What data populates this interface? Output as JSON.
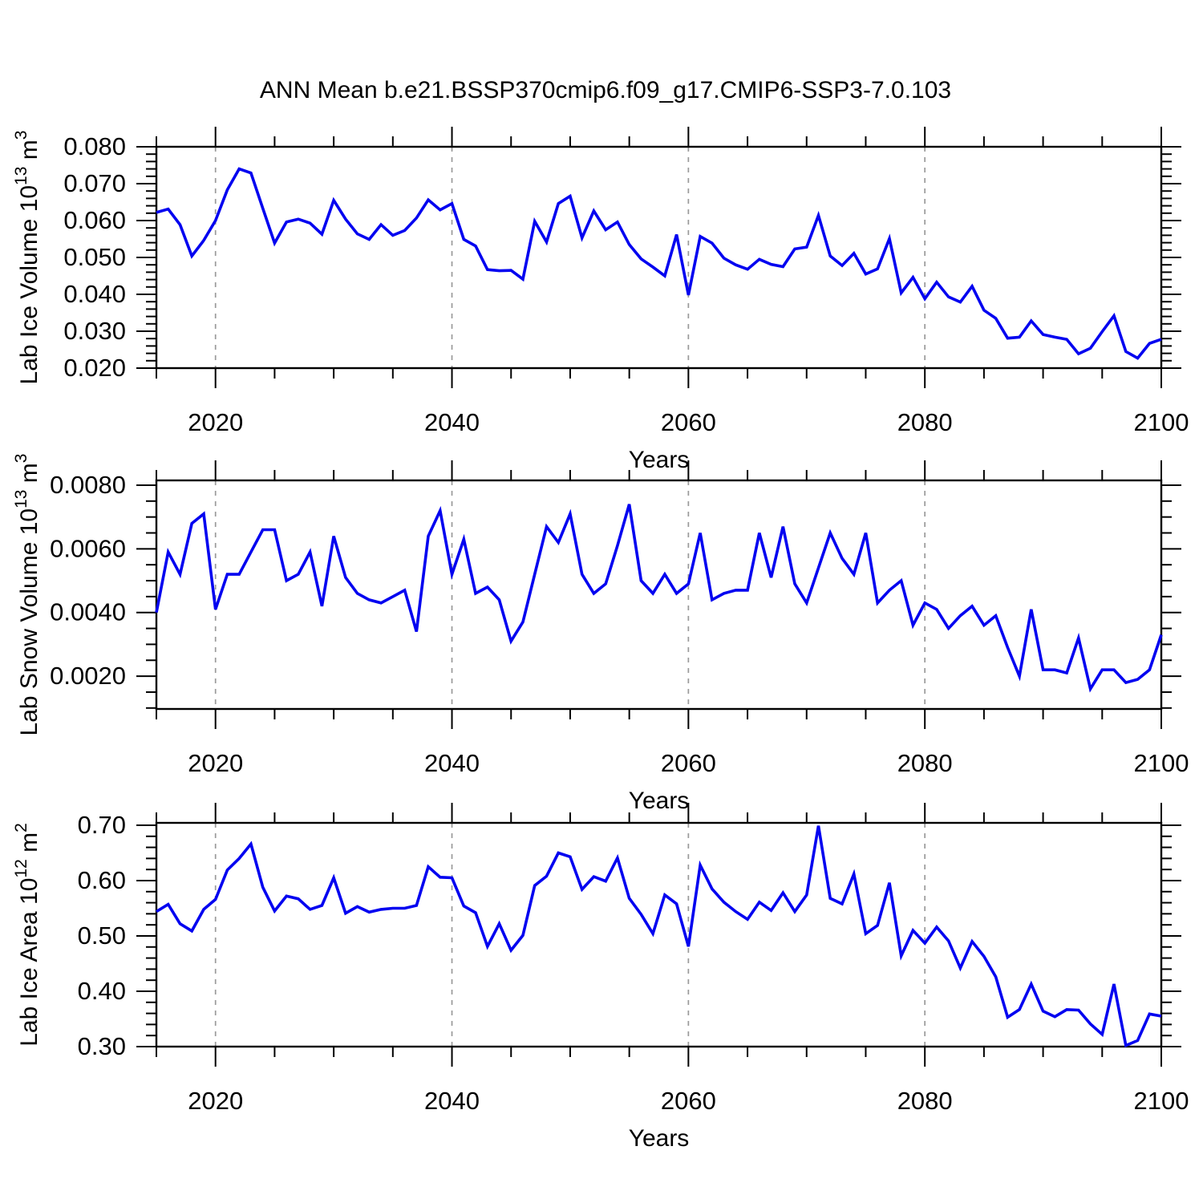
{
  "title": "ANN Mean b.e21.BSSP370cmip6.f09_g17.CMIP6-SSP3-7.0.103",
  "line_color": "#0202f0",
  "grid_color": "#9a9a9a",
  "axis_color": "#000000",
  "chart_data": {
    "type": "line",
    "x_years": [
      2015,
      2016,
      2017,
      2018,
      2019,
      2020,
      2021,
      2022,
      2023,
      2024,
      2025,
      2026,
      2027,
      2028,
      2029,
      2030,
      2031,
      2032,
      2033,
      2034,
      2035,
      2036,
      2037,
      2038,
      2039,
      2040,
      2041,
      2042,
      2043,
      2044,
      2045,
      2046,
      2047,
      2048,
      2049,
      2050,
      2051,
      2052,
      2053,
      2054,
      2055,
      2056,
      2057,
      2058,
      2059,
      2060,
      2061,
      2062,
      2063,
      2064,
      2065,
      2066,
      2067,
      2068,
      2069,
      2070,
      2071,
      2072,
      2073,
      2074,
      2075,
      2076,
      2077,
      2078,
      2079,
      2080,
      2081,
      2082,
      2083,
      2084,
      2085,
      2086,
      2087,
      2088,
      2089,
      2090,
      2091,
      2092,
      2093,
      2094,
      2095,
      2096,
      2097,
      2098,
      2099,
      2100
    ],
    "xlim": [
      2015,
      2100
    ],
    "xlabel": "Years",
    "xticks": {
      "labels": [
        "2020",
        "2040",
        "2060",
        "2080",
        "2100"
      ],
      "values": [
        2020,
        2040,
        2060,
        2080,
        2100
      ],
      "minor_step": 5
    },
    "gridlines_x": [
      2020,
      2040,
      2060,
      2080
    ],
    "legend": "none",
    "panels": [
      {
        "name": "lab-ice-volume",
        "ylabel": "Lab Ice Volume 10¹³ m³",
        "ylabel_parts": [
          {
            "t": "Lab Ice Volume 10"
          },
          {
            "t": "13",
            "sup": true
          },
          {
            "t": " m"
          },
          {
            "t": "3",
            "sup": true
          }
        ],
        "ylim": [
          0.02,
          0.08
        ],
        "yticks": {
          "labels": [
            "0.020",
            "0.030",
            "0.040",
            "0.050",
            "0.060",
            "0.070",
            "0.080"
          ],
          "values": [
            0.02,
            0.03,
            0.04,
            0.05,
            0.06,
            0.07,
            0.08
          ],
          "minor_step": 0.002
        },
        "values": [
          0.0622,
          0.0631,
          0.0589,
          0.0504,
          0.0546,
          0.06,
          0.0683,
          0.074,
          0.0729,
          0.0633,
          0.0539,
          0.0596,
          0.0604,
          0.0593,
          0.0563,
          0.0655,
          0.0604,
          0.0564,
          0.0549,
          0.0589,
          0.056,
          0.0573,
          0.0607,
          0.0656,
          0.0629,
          0.0646,
          0.0549,
          0.0531,
          0.0467,
          0.0464,
          0.0465,
          0.0441,
          0.0598,
          0.0542,
          0.0646,
          0.0666,
          0.0553,
          0.0626,
          0.0575,
          0.0596,
          0.0535,
          0.0496,
          0.0474,
          0.045,
          0.0562,
          0.0398,
          0.0557,
          0.0539,
          0.0498,
          0.048,
          0.0468,
          0.0495,
          0.0481,
          0.0475,
          0.0523,
          0.0528,
          0.0614,
          0.0504,
          0.0478,
          0.0511,
          0.0455,
          0.0469,
          0.0551,
          0.0404,
          0.0446,
          0.0388,
          0.0433,
          0.0393,
          0.0379,
          0.0422,
          0.0357,
          0.0335,
          0.0281,
          0.0284,
          0.0328,
          0.0291,
          0.0284,
          0.0278,
          0.0239,
          0.0254,
          0.0299,
          0.0342,
          0.0245,
          0.0227,
          0.0267,
          0.0278
        ]
      },
      {
        "name": "lab-snow-volume",
        "ylabel": "Lab Snow Volume 10¹³ m³",
        "ylabel_parts": [
          {
            "t": "Lab Snow Volume 10"
          },
          {
            "t": "13",
            "sup": true
          },
          {
            "t": " m"
          },
          {
            "t": "3",
            "sup": true
          }
        ],
        "ylim": [
          0.00097,
          0.00815
        ],
        "yticks": {
          "labels": [
            "0.0020",
            "0.0040",
            "0.0060",
            "0.0080"
          ],
          "values": [
            0.002,
            0.004,
            0.006,
            0.008
          ],
          "minor_step": 0.0005
        },
        "values": [
          0.004,
          0.0059,
          0.0052,
          0.0068,
          0.0071,
          0.0041,
          0.0052,
          0.0052,
          0.0059,
          0.0066,
          0.0066,
          0.005,
          0.0052,
          0.0059,
          0.0042,
          0.0064,
          0.0051,
          0.0046,
          0.0044,
          0.0043,
          0.0045,
          0.0047,
          0.0034,
          0.0064,
          0.0072,
          0.0052,
          0.0063,
          0.0046,
          0.0048,
          0.0044,
          0.0031,
          0.0037,
          0.0052,
          0.0067,
          0.0062,
          0.0071,
          0.0052,
          0.0046,
          0.0049,
          0.0061,
          0.0074,
          0.005,
          0.0046,
          0.0052,
          0.0046,
          0.0049,
          0.0065,
          0.0044,
          0.0046,
          0.0047,
          0.0047,
          0.0065,
          0.0051,
          0.0067,
          0.0049,
          0.0043,
          0.0054,
          0.0065,
          0.0057,
          0.0052,
          0.0065,
          0.0043,
          0.0047,
          0.005,
          0.0036,
          0.0043,
          0.0041,
          0.0035,
          0.0039,
          0.0042,
          0.0036,
          0.0039,
          0.0029,
          0.002,
          0.0041,
          0.0022,
          0.0022,
          0.0021,
          0.0032,
          0.0016,
          0.0022,
          0.0022,
          0.0018,
          0.0019,
          0.0022,
          0.0033
        ]
      },
      {
        "name": "lab-ice-area",
        "ylabel": "Lab Ice Area 10¹² m²",
        "ylabel_parts": [
          {
            "t": "Lab Ice Area 10"
          },
          {
            "t": "12",
            "sup": true
          },
          {
            "t": " m"
          },
          {
            "t": "2",
            "sup": true
          }
        ],
        "ylim": [
          0.3,
          0.7043
        ],
        "yticks": {
          "labels": [
            "0.30",
            "0.40",
            "0.50",
            "0.60",
            "0.70"
          ],
          "values": [
            0.3,
            0.4,
            0.5,
            0.6,
            0.7
          ],
          "minor_step": 0.02
        },
        "values": [
          0.544,
          0.557,
          0.522,
          0.509,
          0.548,
          0.566,
          0.619,
          0.64,
          0.666,
          0.588,
          0.545,
          0.572,
          0.567,
          0.548,
          0.555,
          0.605,
          0.541,
          0.553,
          0.543,
          0.548,
          0.55,
          0.55,
          0.555,
          0.625,
          0.606,
          0.605,
          0.554,
          0.542,
          0.481,
          0.522,
          0.474,
          0.501,
          0.591,
          0.608,
          0.65,
          0.643,
          0.584,
          0.607,
          0.599,
          0.641,
          0.568,
          0.539,
          0.504,
          0.574,
          0.558,
          0.481,
          0.628,
          0.585,
          0.561,
          0.544,
          0.53,
          0.561,
          0.546,
          0.578,
          0.544,
          0.574,
          0.699,
          0.568,
          0.558,
          0.612,
          0.504,
          0.519,
          0.596,
          0.464,
          0.51,
          0.487,
          0.516,
          0.491,
          0.442,
          0.49,
          0.463,
          0.426,
          0.353,
          0.367,
          0.413,
          0.364,
          0.354,
          0.367,
          0.366,
          0.341,
          0.322,
          0.413,
          0.302,
          0.311,
          0.359,
          0.355
        ]
      }
    ]
  }
}
